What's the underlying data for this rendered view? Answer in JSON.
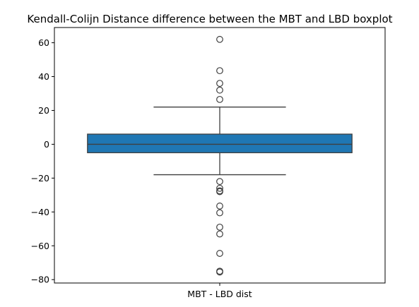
{
  "chart_data": {
    "type": "boxplot",
    "title": "Kendall-Colijn Distance difference between the MBT and LBD boxplot",
    "xlabel": "",
    "ylabel": "",
    "categories": [
      "MBT - LBD dist"
    ],
    "ylim": [
      -82,
      69
    ],
    "yticks": [
      60,
      40,
      20,
      0,
      -20,
      -40,
      -60,
      -80
    ],
    "grid": false,
    "colors": {
      "box": "#1f77b4",
      "line": "#3f3f3f"
    },
    "boxes": [
      {
        "category": "MBT - LBD dist",
        "whisker_low": -18,
        "q1": -5,
        "median": 0,
        "q3": 6,
        "whisker_high": 22,
        "outliers": [
          62,
          43.5,
          36,
          32,
          26.5,
          -22,
          -26,
          -27.5,
          -28,
          -36.5,
          -40.5,
          -49,
          -53,
          -64.5,
          -75,
          -75.5
        ]
      }
    ]
  }
}
